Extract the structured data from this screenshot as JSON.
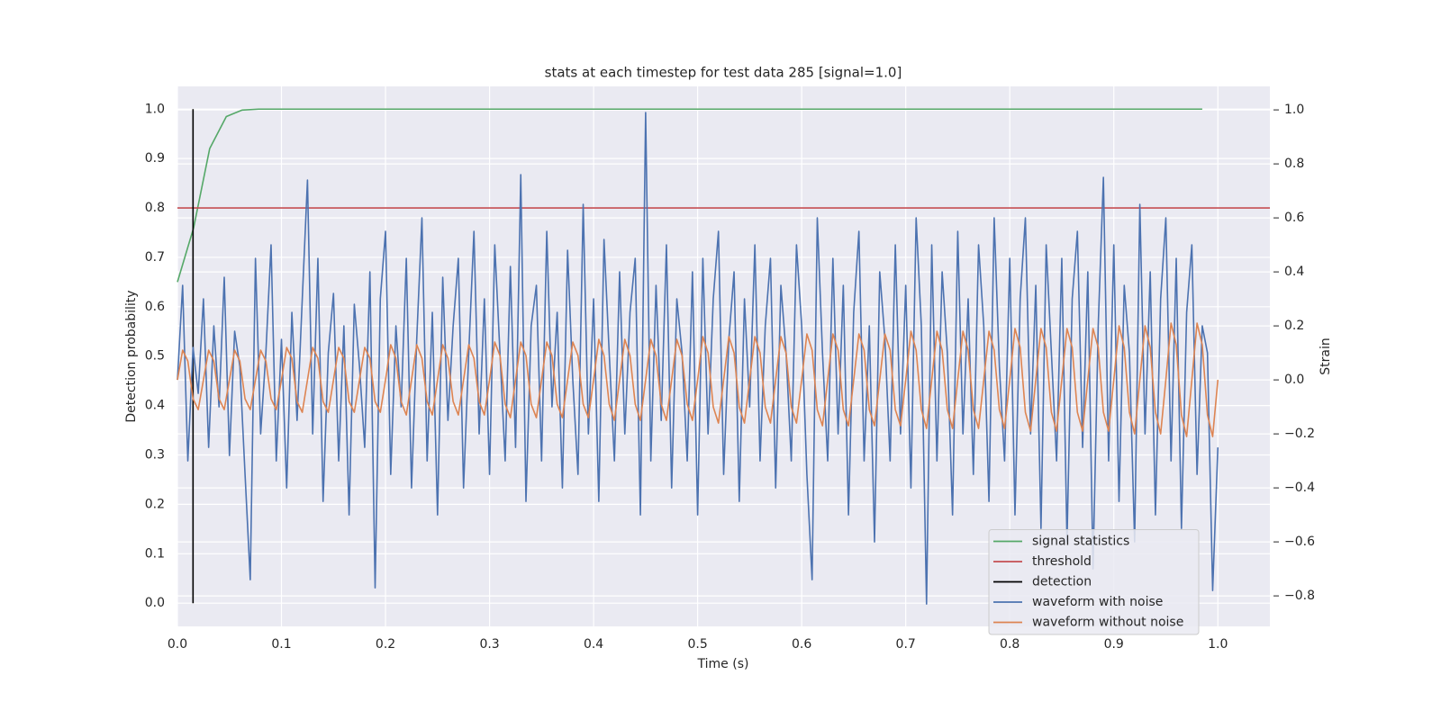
{
  "chart_data": {
    "type": "line",
    "title": "stats at each timestep for test data 285 [signal=1.0]",
    "xlabel": "Time (s)",
    "ylabel": "Detection probability",
    "y2label": "Strain",
    "xlim": [
      0,
      1.05
    ],
    "ylim": [
      -0.047,
      1.046
    ],
    "y2lim": [
      -0.913,
      1.087
    ],
    "xticks": [
      {
        "value": 0,
        "label": "0.0"
      },
      0.1,
      0.2,
      0.3,
      0.4,
      0.5,
      0.6,
      0.7,
      0.8,
      0.9,
      {
        "value": 1,
        "label": "1.0"
      }
    ],
    "yticks": [
      {
        "value": 0,
        "label": "0.0"
      },
      0.1,
      0.2,
      0.3,
      0.4,
      0.5,
      0.6,
      0.7,
      0.8,
      0.9,
      {
        "value": 1,
        "label": "1.0"
      }
    ],
    "y2ticks": [
      {
        "value": -0.8,
        "label": "−0.8"
      },
      {
        "value": -0.6,
        "label": "−0.6"
      },
      {
        "value": -0.4,
        "label": "−0.4"
      },
      {
        "value": -0.2,
        "label": "−0.2"
      },
      {
        "value": 0,
        "label": "0.0"
      },
      0.2,
      0.4,
      0.6,
      0.8,
      {
        "value": 1,
        "label": "1.0"
      }
    ],
    "grid": true,
    "legend": "lower right",
    "x": [
      0,
      0.005,
      0.01,
      0.015,
      0.02,
      0.025,
      0.03,
      0.035,
      0.04,
      0.045,
      0.05,
      0.055,
      0.06,
      0.065,
      0.07,
      0.075,
      0.08,
      0.085,
      0.09,
      0.095,
      0.1,
      0.105,
      0.11,
      0.115,
      0.12,
      0.125,
      0.13,
      0.135,
      0.14,
      0.145,
      0.15,
      0.155,
      0.16,
      0.165,
      0.17,
      0.175,
      0.18,
      0.185,
      0.19,
      0.195,
      0.2,
      0.205,
      0.21,
      0.215,
      0.22,
      0.225,
      0.23,
      0.235,
      0.24,
      0.245,
      0.25,
      0.255,
      0.26,
      0.265,
      0.27,
      0.275,
      0.28,
      0.285,
      0.29,
      0.295,
      0.3,
      0.305,
      0.31,
      0.315,
      0.32,
      0.325,
      0.33,
      0.335,
      0.34,
      0.345,
      0.35,
      0.355,
      0.36,
      0.365,
      0.37,
      0.375,
      0.38,
      0.385,
      0.39,
      0.395,
      0.4,
      0.405,
      0.41,
      0.415,
      0.42,
      0.425,
      0.43,
      0.435,
      0.44,
      0.445,
      0.45,
      0.455,
      0.46,
      0.465,
      0.47,
      0.475,
      0.48,
      0.485,
      0.49,
      0.495,
      0.5,
      0.505,
      0.51,
      0.515,
      0.52,
      0.525,
      0.53,
      0.535,
      0.54,
      0.545,
      0.55,
      0.555,
      0.56,
      0.565,
      0.57,
      0.575,
      0.58,
      0.585,
      0.59,
      0.595,
      0.6,
      0.605,
      0.61,
      0.615,
      0.62,
      0.625,
      0.63,
      0.635,
      0.64,
      0.645,
      0.65,
      0.655,
      0.66,
      0.665,
      0.67,
      0.675,
      0.68,
      0.685,
      0.69,
      0.695,
      0.7,
      0.705,
      0.71,
      0.715,
      0.72,
      0.725,
      0.73,
      0.735,
      0.74,
      0.745,
      0.75,
      0.755,
      0.76,
      0.765,
      0.77,
      0.775,
      0.78,
      0.785,
      0.79,
      0.795,
      0.8,
      0.805,
      0.81,
      0.815,
      0.82,
      0.825,
      0.83,
      0.835,
      0.84,
      0.845,
      0.85,
      0.855,
      0.86,
      0.865,
      0.87,
      0.875,
      0.88,
      0.885,
      0.89,
      0.895,
      0.9,
      0.905,
      0.91,
      0.915,
      0.92,
      0.925,
      0.93,
      0.935,
      0.94,
      0.945,
      0.95,
      0.955,
      0.96,
      0.965,
      0.97,
      0.975,
      0.98,
      0.985,
      0.99,
      0.995,
      1.0
    ],
    "series": [
      {
        "name": "signal statistics",
        "color": "#55a868",
        "x": [
          0,
          0.0156,
          0.031,
          0.047,
          0.062,
          0.078,
          0.985
        ],
        "values": [
          0.65,
          0.76,
          0.92,
          0.985,
          0.998,
          1.0,
          1.0
        ]
      },
      {
        "name": "threshold",
        "color": "#c44e52",
        "x": [
          0,
          1.05
        ],
        "values": [
          0.8,
          0.8
        ]
      },
      {
        "name": "detection",
        "color": "#000000",
        "x": [
          0.015,
          0.015
        ],
        "values": [
          0,
          1.0
        ]
      },
      {
        "name": "waveform with noise",
        "color": "#4c72b0",
        "axis": "y2",
        "values": [
          0.0,
          0.35,
          -0.3,
          0.12,
          -0.05,
          0.3,
          -0.25,
          0.2,
          -0.1,
          0.38,
          -0.28,
          0.18,
          0.05,
          -0.35,
          -0.74,
          0.45,
          -0.2,
          0.1,
          0.5,
          -0.3,
          0.15,
          -0.4,
          0.25,
          -0.15,
          0.3,
          0.74,
          -0.2,
          0.45,
          -0.45,
          0.1,
          0.32,
          -0.3,
          0.2,
          -0.5,
          0.28,
          0.05,
          -0.25,
          0.4,
          -0.77,
          0.3,
          0.55,
          -0.35,
          0.2,
          -0.1,
          0.45,
          -0.4,
          0.15,
          0.6,
          -0.3,
          0.25,
          -0.5,
          0.38,
          -0.15,
          0.2,
          0.45,
          -0.4,
          0.1,
          0.55,
          -0.2,
          0.3,
          -0.35,
          0.5,
          0.1,
          -0.3,
          0.42,
          -0.25,
          0.76,
          -0.45,
          0.2,
          0.35,
          -0.3,
          0.55,
          -0.1,
          0.25,
          -0.4,
          0.48,
          0.0,
          -0.35,
          0.65,
          -0.2,
          0.3,
          -0.45,
          0.52,
          0.1,
          -0.3,
          0.4,
          -0.2,
          0.25,
          0.45,
          -0.5,
          0.99,
          -0.3,
          0.35,
          -0.15,
          0.5,
          -0.4,
          0.3,
          0.1,
          -0.3,
          0.4,
          -0.5,
          0.45,
          -0.2,
          0.3,
          0.55,
          -0.35,
          0.15,
          0.4,
          -0.45,
          0.3,
          -0.1,
          0.5,
          -0.3,
          0.2,
          0.45,
          -0.4,
          0.35,
          0.1,
          -0.3,
          0.5,
          0.2,
          -0.35,
          -0.74,
          0.6,
          0.1,
          -0.3,
          0.45,
          -0.2,
          0.35,
          -0.5,
          0.25,
          0.55,
          -0.3,
          0.2,
          -0.6,
          0.4,
          0.15,
          -0.3,
          0.5,
          -0.2,
          0.35,
          -0.4,
          0.6,
          0.2,
          -0.83,
          0.5,
          -0.3,
          0.4,
          0.1,
          -0.5,
          0.55,
          -0.2,
          0.3,
          -0.35,
          0.5,
          0.2,
          -0.45,
          0.6,
          0.05,
          -0.3,
          0.45,
          -0.5,
          0.3,
          0.6,
          -0.2,
          0.35,
          -0.55,
          0.5,
          0.1,
          -0.3,
          0.45,
          -0.6,
          0.3,
          0.55,
          -0.25,
          0.4,
          -0.7,
          0.2,
          0.75,
          -0.3,
          0.5,
          -0.45,
          0.35,
          0.1,
          -0.6,
          0.65,
          -0.2,
          0.4,
          -0.5,
          0.3,
          0.6,
          -0.3,
          0.45,
          -0.55,
          0.25,
          0.5,
          -0.35,
          0.2,
          0.1,
          -0.78,
          -0.25
        ]
      },
      {
        "name": "waveform without noise",
        "color": "#dd8452",
        "axis": "y2",
        "values": [
          0,
          0.11,
          0.07,
          -0.07,
          -0.11,
          0,
          0.11,
          0.07,
          -0.07,
          -0.11,
          0,
          0.11,
          0.07,
          -0.07,
          -0.11,
          0,
          0.11,
          0.07,
          -0.07,
          -0.11,
          0,
          0.12,
          0.08,
          -0.08,
          -0.12,
          0,
          0.12,
          0.08,
          -0.08,
          -0.12,
          0,
          0.12,
          0.08,
          -0.08,
          -0.12,
          0,
          0.12,
          0.08,
          -0.08,
          -0.12,
          0,
          0.13,
          0.08,
          -0.08,
          -0.13,
          0,
          0.13,
          0.08,
          -0.08,
          -0.13,
          0,
          0.13,
          0.08,
          -0.08,
          -0.13,
          0,
          0.13,
          0.08,
          -0.08,
          -0.13,
          0,
          0.14,
          0.09,
          -0.09,
          -0.14,
          0,
          0.14,
          0.09,
          -0.09,
          -0.14,
          0,
          0.14,
          0.09,
          -0.09,
          -0.14,
          0,
          0.14,
          0.09,
          -0.09,
          -0.14,
          0,
          0.15,
          0.09,
          -0.09,
          -0.15,
          0,
          0.15,
          0.09,
          -0.09,
          -0.15,
          0,
          0.15,
          0.09,
          -0.09,
          -0.15,
          0,
          0.15,
          0.09,
          -0.09,
          -0.15,
          0,
          0.16,
          0.1,
          -0.1,
          -0.16,
          0,
          0.16,
          0.1,
          -0.1,
          -0.16,
          0,
          0.16,
          0.1,
          -0.1,
          -0.16,
          0,
          0.16,
          0.1,
          -0.1,
          -0.16,
          0,
          0.17,
          0.11,
          -0.11,
          -0.17,
          0,
          0.17,
          0.11,
          -0.11,
          -0.17,
          0,
          0.17,
          0.11,
          -0.11,
          -0.17,
          0,
          0.17,
          0.11,
          -0.11,
          -0.17,
          0,
          0.18,
          0.11,
          -0.11,
          -0.18,
          0,
          0.18,
          0.11,
          -0.11,
          -0.18,
          0,
          0.18,
          0.11,
          -0.11,
          -0.18,
          0,
          0.18,
          0.11,
          -0.11,
          -0.18,
          0,
          0.19,
          0.12,
          -0.12,
          -0.19,
          0,
          0.19,
          0.12,
          -0.12,
          -0.19,
          0,
          0.19,
          0.12,
          -0.12,
          -0.19,
          0,
          0.19,
          0.12,
          -0.12,
          -0.19,
          0,
          0.2,
          0.12,
          -0.12,
          -0.2,
          0,
          0.2,
          0.12,
          -0.12,
          -0.2,
          0,
          0.21,
          0.13,
          -0.13,
          -0.21,
          0,
          0.21,
          0.13,
          -0.13,
          -0.21,
          0
        ]
      }
    ]
  }
}
